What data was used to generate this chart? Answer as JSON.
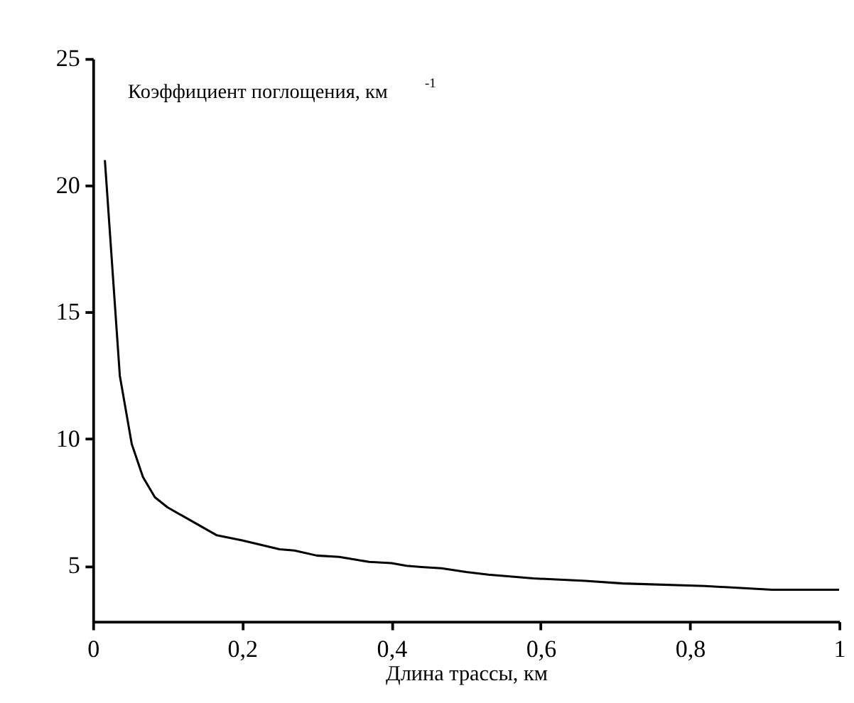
{
  "chart_data": {
    "type": "line",
    "xlabel": "Длина трассы, км",
    "annotations": [
      "Коэффициент поглощения, км$^{-1}$"
    ],
    "x": [
      0.016,
      0.036,
      0.052,
      0.067,
      0.083,
      0.1,
      0.13,
      0.166,
      0.2,
      0.25,
      0.27,
      0.3,
      0.33,
      0.35,
      0.37,
      0.4,
      0.42,
      0.44,
      0.467,
      0.5,
      0.53,
      0.59,
      0.66,
      0.71,
      0.82,
      0.91,
      1.0
    ],
    "series": [
      {
        "color": "#000000",
        "values": [
          21,
          12.5,
          9.8,
          8.5,
          7.7,
          7.3,
          6.8,
          6.2,
          6.0,
          5.65,
          5.6,
          5.4,
          5.35,
          5.25,
          5.15,
          5.1,
          5.0,
          4.95,
          4.9,
          4.75,
          4.65,
          4.5,
          4.4,
          4.3,
          4.2,
          4.05,
          4.05
        ]
      }
    ],
    "xlim": [
      0,
      1
    ],
    "xticks": [
      0,
      {
        "value": 0.2,
        "label": "0,2"
      },
      {
        "value": 0.4,
        "label": "0,4"
      },
      {
        "value": 0.6,
        "label": "0,6"
      },
      {
        "value": 0.8,
        "label": "0,8"
      },
      1
    ],
    "ylim": [
      2.8,
      25
    ],
    "yticks": [
      5,
      10,
      15,
      20,
      25
    ],
    "grid": false,
    "marker": "none",
    "line_style": "solid"
  }
}
